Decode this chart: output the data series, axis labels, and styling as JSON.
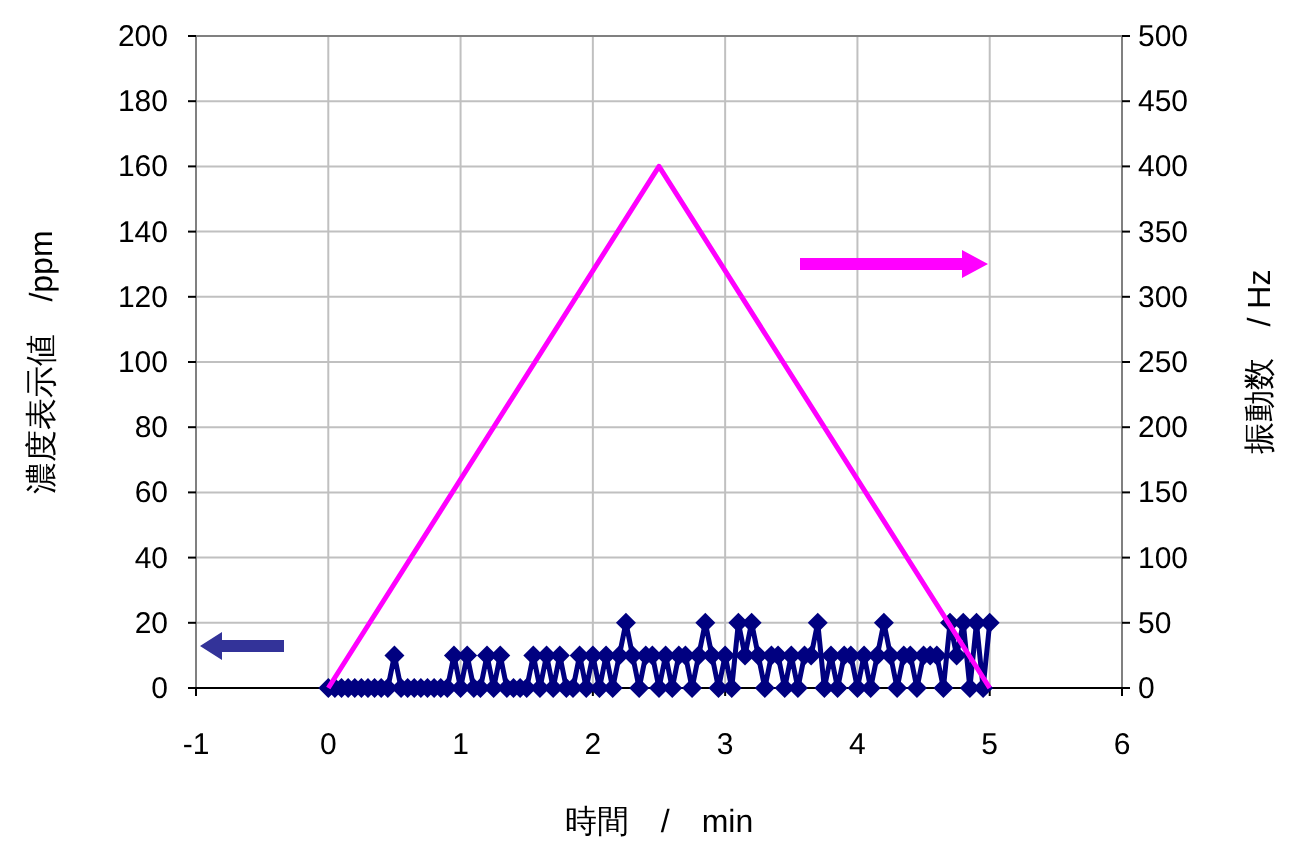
{
  "chart_data": {
    "type": "line",
    "xlabel": "時間　/　min",
    "ylabel": "濃度表示値　/ppm",
    "y2label": "振動数　/ Hz",
    "xlim": [
      -1,
      6
    ],
    "xticks": [
      -1,
      0,
      1,
      2,
      3,
      4,
      5,
      6
    ],
    "ylim": [
      0,
      200
    ],
    "yticks": [
      0,
      20,
      40,
      60,
      80,
      100,
      120,
      140,
      160,
      180,
      200
    ],
    "y2lim": [
      0,
      500
    ],
    "y2ticks": [
      0,
      50,
      100,
      150,
      200,
      250,
      300,
      350,
      400,
      450,
      500
    ],
    "grid": true,
    "series": [
      {
        "color": "#000080",
        "marker": "diamond",
        "x": [
          0,
          0.05,
          0.1,
          0.15,
          0.2,
          0.25,
          0.3,
          0.35,
          0.4,
          0.45,
          0.5,
          0.55,
          0.6,
          0.65,
          0.7,
          0.75,
          0.8,
          0.85,
          0.9,
          0.95,
          1,
          1.05,
          1.1,
          1.15,
          1.2,
          1.25,
          1.3,
          1.35,
          1.4,
          1.45,
          1.5,
          1.55,
          1.6,
          1.65,
          1.7,
          1.75,
          1.8,
          1.85,
          1.9,
          1.95,
          2,
          2.05,
          2.1,
          2.15,
          2.2,
          2.25,
          2.3,
          2.35,
          2.4,
          2.45,
          2.5,
          2.55,
          2.6,
          2.65,
          2.7,
          2.75,
          2.8,
          2.85,
          2.9,
          2.95,
          3,
          3.05,
          3.1,
          3.15,
          3.2,
          3.25,
          3.3,
          3.35,
          3.4,
          3.45,
          3.5,
          3.55,
          3.6,
          3.65,
          3.7,
          3.75,
          3.8,
          3.85,
          3.9,
          3.95,
          4,
          4.05,
          4.1,
          4.15,
          4.2,
          4.25,
          4.3,
          4.35,
          4.4,
          4.45,
          4.5,
          4.55,
          4.6,
          4.65,
          4.7,
          4.75,
          4.8,
          4.85,
          4.9,
          4.95,
          5
        ],
        "values": [
          0,
          0,
          0,
          0,
          0,
          0,
          0,
          0,
          0,
          0,
          10,
          0,
          0,
          0,
          0,
          0,
          0,
          0,
          0,
          10,
          0,
          10,
          0,
          0,
          10,
          0,
          10,
          0,
          0,
          0,
          0,
          10,
          0,
          10,
          0,
          10,
          0,
          0,
          10,
          0,
          10,
          0,
          10,
          0,
          10,
          20,
          10,
          0,
          10,
          10,
          0,
          10,
          0,
          10,
          10,
          0,
          10,
          20,
          10,
          0,
          10,
          0,
          20,
          10,
          20,
          10,
          0,
          10,
          10,
          0,
          10,
          0,
          10,
          10,
          20,
          0,
          10,
          0,
          10,
          10,
          0,
          10,
          0,
          10,
          20,
          10,
          0,
          10,
          10,
          0,
          10,
          10,
          10,
          0,
          20,
          10,
          20,
          0,
          20,
          0,
          20
        ]
      },
      {
        "color": "#ff00ff",
        "marker": "none",
        "axis": "y2",
        "x": [
          0,
          2.5,
          5
        ],
        "values": [
          0,
          400,
          0
        ]
      }
    ]
  }
}
